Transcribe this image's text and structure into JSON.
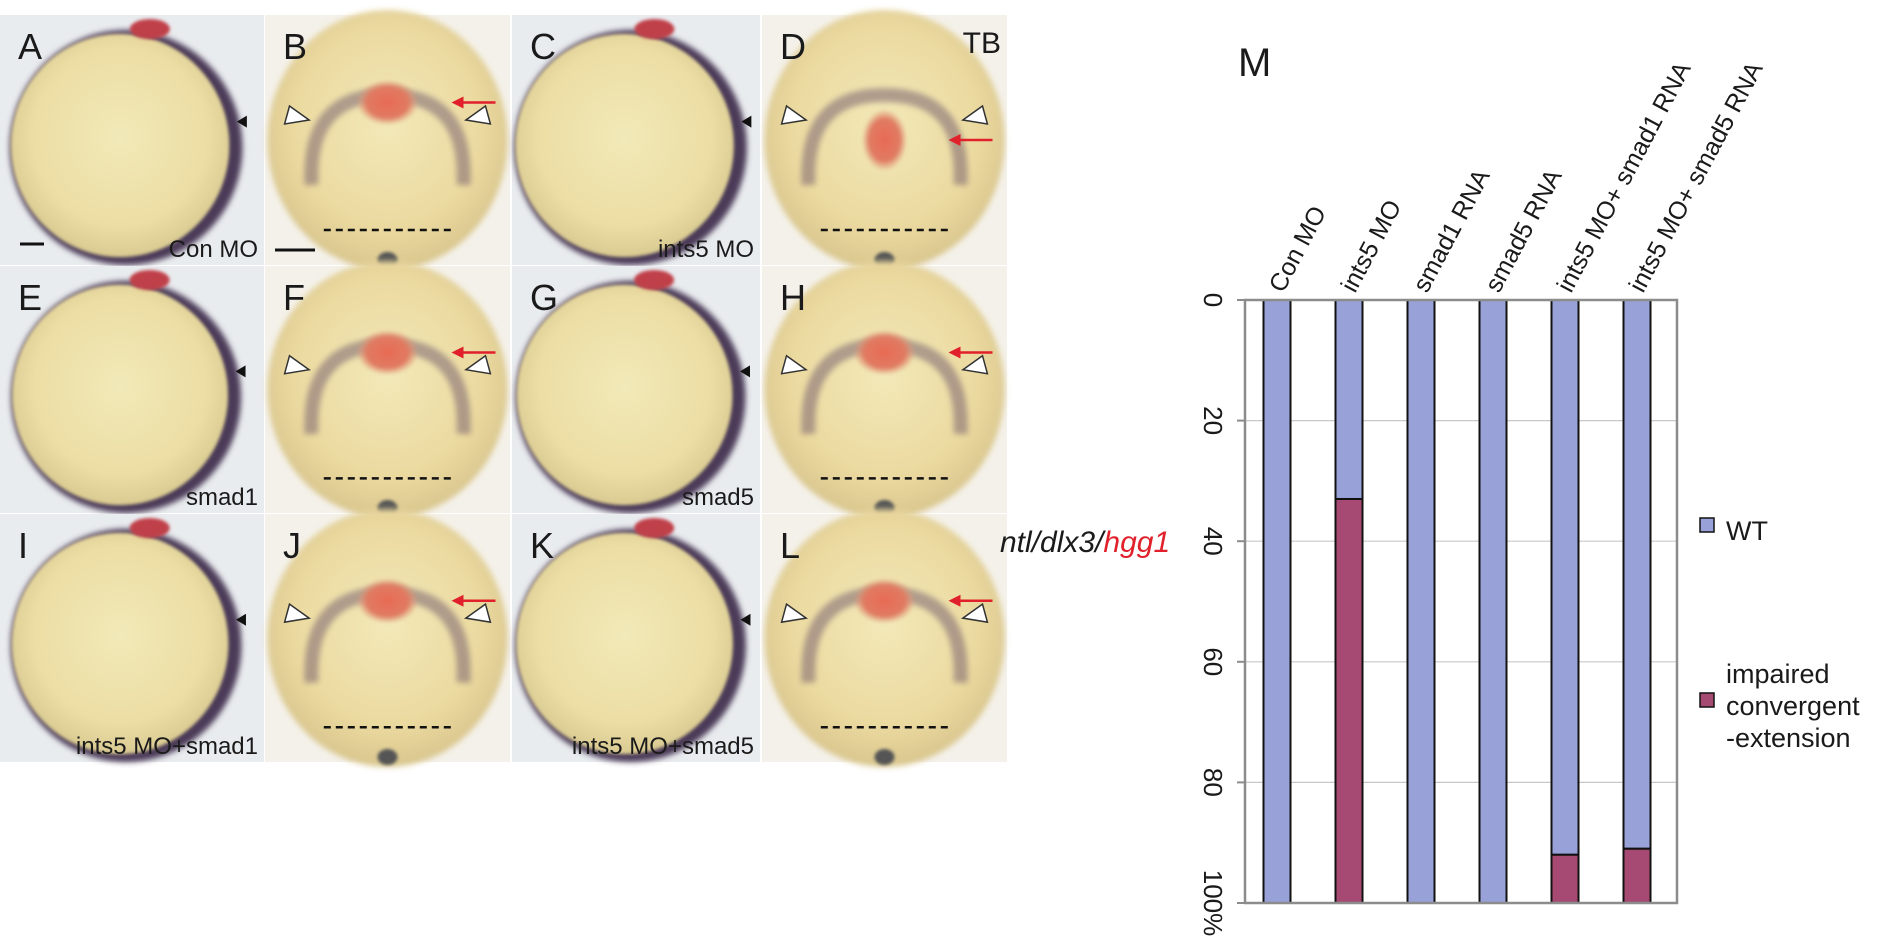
{
  "panels": [
    {
      "letter": "A",
      "view": "lateral",
      "caption": "Con MO",
      "scale_bar": true
    },
    {
      "letter": "B",
      "view": "dorsal",
      "caption": "",
      "scale_bar": true
    },
    {
      "letter": "C",
      "view": "lateral",
      "caption": "ints5 MO"
    },
    {
      "letter": "D",
      "view": "dorsal",
      "caption": "",
      "corner_label": "TB"
    },
    {
      "letter": "E",
      "view": "lateral",
      "caption": "smad1"
    },
    {
      "letter": "F",
      "view": "dorsal",
      "caption": ""
    },
    {
      "letter": "G",
      "view": "lateral",
      "caption": "smad5"
    },
    {
      "letter": "H",
      "view": "dorsal",
      "caption": ""
    },
    {
      "letter": "I",
      "view": "lateral",
      "caption": "ints5 MO+smad1"
    },
    {
      "letter": "J",
      "view": "dorsal",
      "caption": ""
    },
    {
      "letter": "K",
      "view": "lateral",
      "caption": "ints5 MO+smad5"
    },
    {
      "letter": "L",
      "view": "dorsal",
      "caption": ""
    }
  ],
  "stain_label": {
    "part1": "ntl/dlx3/",
    "part2": "hgg1",
    "part2_color": "#e0202a"
  },
  "chart_data": {
    "panel_letter": "M",
    "type": "bar",
    "stacked": true,
    "orientation": "vertical, y axis inverted (0 at top, 100% at bottom), category labels rotated along top",
    "categories": [
      "Con MO",
      "ints5 MO",
      "smad1 RNA",
      "smad5 RNA",
      "ints5 MO+ smad1 RNA",
      "ints5 MO+ smad5 RNA"
    ],
    "series": [
      {
        "name": "WT",
        "color": "#98a2d8",
        "values": [
          100,
          33,
          100,
          100,
          92,
          91
        ]
      },
      {
        "name": "impaired convergent -extension",
        "color": "#a74a73",
        "values": [
          0,
          67,
          0,
          0,
          8,
          9
        ]
      }
    ],
    "ylim": [
      0,
      100
    ],
    "yticks": [
      {
        "value": 0,
        "label": "0"
      },
      {
        "value": 20,
        "label": "20"
      },
      {
        "value": 40,
        "label": "40"
      },
      {
        "value": 60,
        "label": "60"
      },
      {
        "value": 80,
        "label": "80"
      },
      {
        "value": 100,
        "label": "100%"
      }
    ],
    "grid": true,
    "legend_position": "right",
    "legend": [
      {
        "label_lines": [
          "WT"
        ],
        "color": "#98a2d8"
      },
      {
        "label_lines": [
          "impaired",
          "convergent",
          "-extension"
        ],
        "color": "#a74a73"
      }
    ]
  },
  "colors": {
    "embryo": "#ece0a6",
    "rim": "#5a4a63",
    "stain": "#e0705a",
    "arrow": "#e0202a"
  }
}
